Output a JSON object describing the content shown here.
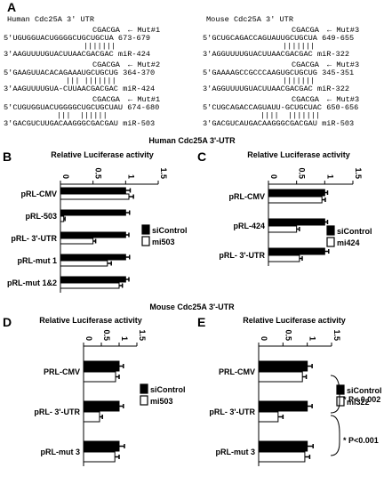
{
  "panel_a": {
    "letter": "A",
    "human_header": "Human Cdc25A 3' UTR",
    "mouse_header": "Mouse Cdc25A 3' UTR",
    "human": [
      {
        "mut_seq": "CGACGA",
        "mut_label": "Mut#1",
        "top": "5'UGUGGUACUGGGGCUGCUGCUA 673-679",
        "pairs": "|||||||",
        "bottom": "3'AAGUUUUGUACUUAACGACGAC miR-424"
      },
      {
        "mut_seq": "CGACGA",
        "mut_label": "Mut#2",
        "top": "5'GAAGUUACACAGAAAUGCUGCUG 364-370",
        "pairs": "||| |||||||",
        "bottom": "3'AAGUUUUGUA-CUUAACGACGAC miR-424"
      },
      {
        "mut_seq": "CGACGA",
        "mut_label": "Mut#1",
        "top": "5'CUGUGGUACUGGGGCUGCUGCUAU 674-680",
        "pairs": "|||  ||||||",
        "bottom": "3'GACGUCUUGACAAGGGCGACGAU miR-503"
      }
    ],
    "mouse": [
      {
        "mut_seq": "CGACGA",
        "mut_label": "Mut#3",
        "top": "5'GCUGCAGACCAGUAUUGCUGCUA 649-655",
        "pairs": "|||||||",
        "bottom": "3'AGGUUUUGUACUUAACGACGAC miR-322"
      },
      {
        "mut_seq": "CGACGA",
        "mut_label": "Mut#3",
        "top": "5'GAAAAGCCGCCCAAGUGCUGCUG 345-351",
        "pairs": "|||||||",
        "bottom": "3'AGGUUUUGUACUUAACGACGAC miR-322"
      },
      {
        "mut_seq": "CGACGA",
        "mut_label": "Mut#3",
        "top": "5'CUGCAGACCAGUAUU-GCUGCUAC 650-656",
        "pairs": "||||  |||||||",
        "bottom": "3'GACGUCAUGACAAGGGCGACGAU miR-503"
      }
    ]
  },
  "section_titles": {
    "human": "Human Cdc25A 3'-UTR",
    "mouse": "Mouse Cdc25A 3'-UTR"
  },
  "chart_data": [
    {
      "panel": "B",
      "type": "bar",
      "orientation": "horizontal",
      "title": "Relative Luciferase activity",
      "xlim": [
        0,
        1.5
      ],
      "ticks": [
        "0",
        "0.5",
        "1",
        "1.5"
      ],
      "categories": [
        "pRL-CMV",
        "pRL-503",
        "pRL- 3'-UTR",
        "pRL-mut 1",
        "pRL-mut 1&2"
      ],
      "series": [
        {
          "name": "siControl",
          "color": "#000000",
          "values": [
            1.0,
            1.0,
            1.0,
            1.0,
            1.0
          ],
          "errors": [
            0.07,
            0.06,
            0.05,
            0.06,
            0.05
          ]
        },
        {
          "name": "mi503",
          "color": "#ffffff",
          "values": [
            1.05,
            0.05,
            0.5,
            0.72,
            0.9
          ],
          "errors": [
            0.07,
            0.02,
            0.04,
            0.06,
            0.05
          ]
        }
      ]
    },
    {
      "panel": "C",
      "type": "bar",
      "orientation": "horizontal",
      "title": "Relative Luciferase activity",
      "xlim": [
        0,
        1.5
      ],
      "ticks": [
        "0",
        "0.5",
        "1",
        "1.5"
      ],
      "categories": [
        "pRL-CMV",
        "pRL-424",
        "pRL- 3'-UTR"
      ],
      "series": [
        {
          "name": "siControl",
          "color": "#000000",
          "values": [
            1.0,
            1.0,
            1.0
          ],
          "errors": [
            0.05,
            0.05,
            0.07
          ]
        },
        {
          "name": "mi424",
          "color": "#ffffff",
          "values": [
            0.95,
            0.5,
            0.55
          ],
          "errors": [
            0.06,
            0.05,
            0.05
          ]
        }
      ]
    },
    {
      "panel": "D",
      "type": "bar",
      "orientation": "horizontal",
      "title": "Relative Luciferase activity",
      "xlim": [
        0,
        1.5
      ],
      "ticks": [
        "0",
        "0.5",
        "1",
        "1.5"
      ],
      "categories": [
        "PRL-CMV",
        "pRL- 3'-UTR",
        "pRL-mut 3"
      ],
      "series": [
        {
          "name": "siControl",
          "color": "#000000",
          "values": [
            1.0,
            1.0,
            1.0
          ],
          "errors": [
            0.12,
            0.12,
            0.15
          ]
        },
        {
          "name": "mi503",
          "color": "#ffffff",
          "values": [
            0.9,
            0.45,
            0.88
          ],
          "errors": [
            0.1,
            0.08,
            0.12
          ]
        }
      ]
    },
    {
      "panel": "E",
      "type": "bar",
      "orientation": "horizontal",
      "title": "Relative Luciferase activity",
      "xlim": [
        0,
        1.5
      ],
      "ticks": [
        "0",
        "0.5",
        "1",
        "1.5"
      ],
      "categories": [
        "PRL-CMV",
        "pRL- 3'-UTR",
        "pRL-mut 3"
      ],
      "series": [
        {
          "name": "siControl",
          "color": "#000000",
          "values": [
            1.0,
            1.0,
            1.0
          ],
          "errors": [
            0.1,
            0.1,
            0.12
          ]
        },
        {
          "name": "mi322",
          "color": "#ffffff",
          "values": [
            0.9,
            0.4,
            0.95
          ],
          "errors": [
            0.08,
            0.1,
            0.1
          ]
        }
      ],
      "annotations": [
        "* P< 0.002",
        "* P<0.001"
      ]
    }
  ]
}
